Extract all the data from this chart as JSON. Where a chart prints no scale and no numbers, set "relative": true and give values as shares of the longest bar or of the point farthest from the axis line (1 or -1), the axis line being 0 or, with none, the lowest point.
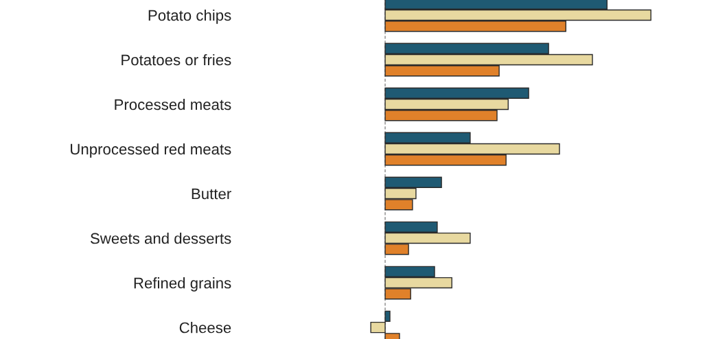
{
  "chart_data": {
    "type": "bar",
    "orientation": "horizontal",
    "relative": true,
    "categories": [
      "Potato chips",
      "Potatoes or fries",
      "Processed meats",
      "Unprocessed red meats",
      "Butter",
      "Sweets and desserts",
      "Refined grains",
      "Cheese"
    ],
    "series": [
      {
        "color": "#1f5a73",
        "values": [
          0.835,
          0.615,
          0.54,
          0.32,
          0.212,
          0.196,
          0.186,
          0.018
        ]
      },
      {
        "color": "#e8d9a0",
        "values": [
          1,
          0.78,
          0.463,
          0.656,
          0.116,
          0.32,
          0.251,
          -0.054
        ]
      },
      {
        "color": "#e0812a",
        "values": [
          0.68,
          0.429,
          0.421,
          0.455,
          0.103,
          0.088,
          0.096,
          0.054
        ]
      }
    ],
    "ref_lines": [
      {
        "axis": "x",
        "value": 0,
        "color": "#888888",
        "line_style": "dashed"
      }
    ],
    "grid": false,
    "legend": false
  }
}
